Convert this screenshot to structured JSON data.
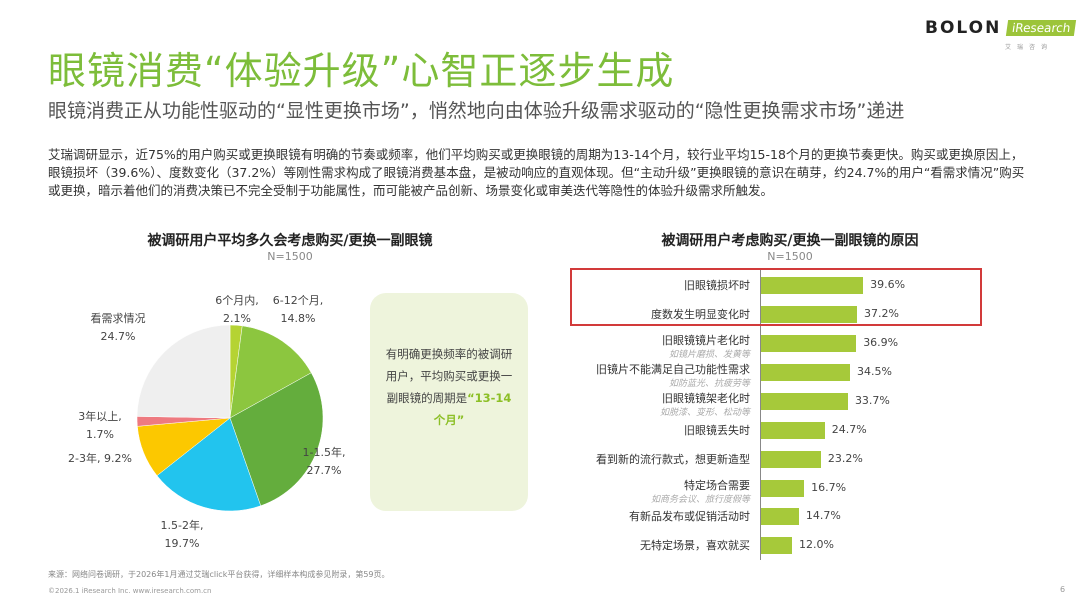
{
  "header": {
    "title": "眼镜消费“体验升级”心智正逐步生成",
    "subtitle": "眼镜消费正从功能性驱动的“显性更换市场”，悄然地向由体验升级需求驱动的“隐性更换需求市场”递进",
    "logo_brand": "BOLON",
    "logo_partner": "iResearch",
    "logo_partner_cn": "艾瑞咨询"
  },
  "body": "艾瑞调研显示，近75%的用户购买或更换眼镜有明确的节奏或频率，他们平均购买或更换眼镜的周期为13-14个月，较行业平均15-18个月的更换节奏更快。购买或更换原因上，眼镜损坏（39.6%）、度数变化（37.2%）等刚性需求构成了眼镜消费基本盘，是被动响应的直观体现。但“主动升级”更换眼镜的意识在萌芽，约24.7%的用户“看需求情况”购买或更换，暗示着他们的消费决策已不完全受制于功能属性，而可能被产品创新、场景变化或审美迭代等隐性的体验升级需求所触发。",
  "callout": {
    "text": "有明确更换频率的被调研用户，平均购买或更换一副眼镜的周期是",
    "highlight": "“13-14个月”"
  },
  "chart_data": [
    {
      "type": "pie",
      "title": "被调研用户平均多久会考虑购买/更换一副眼镜",
      "subtitle": "N=1500",
      "slices": [
        {
          "label": "6个月内,",
          "value": 2.1,
          "text": "2.1%",
          "color": "#b5d333"
        },
        {
          "label": "6-12个月,",
          "value": 14.8,
          "text": "14.8%",
          "color": "#8cc63f"
        },
        {
          "label": "1-1.5年,",
          "value": 27.7,
          "text": "27.7%",
          "color": "#64ad3d"
        },
        {
          "label": "1.5-2年,",
          "value": 19.7,
          "text": "19.7%",
          "color": "#22c4ee"
        },
        {
          "label": "2-3年,",
          "value": 9.2,
          "text": "9.2%",
          "color": "#fcc800"
        },
        {
          "label": "3年以上,",
          "value": 1.7,
          "text": "1.7%",
          "color": "#ee7a80"
        },
        {
          "label": "看需求情况",
          "value": 24.7,
          "text": "24.7%",
          "color": "#efefef"
        }
      ]
    },
    {
      "type": "bar",
      "orientation": "horizontal",
      "title": "被调研用户考虑购买/更换一副眼镜的原因",
      "subtitle": "N=1500",
      "color": "#a6c93a",
      "highlight_color": "#d23a3a",
      "categories": [
        "旧眼镜损坏时",
        "度数发生明显变化时",
        "旧眼镜镜片老化时",
        "旧镜片不能满足自己功能性需求",
        "旧眼镜镜架老化时",
        "旧眼镜丢失时",
        "看到新的流行款式，想更新造型",
        "特定场合需要",
        "有新品发布或促销活动时",
        "无特定场景，喜欢就买"
      ],
      "notes": [
        "",
        "",
        "如镜片磨损、发黄等",
        "如防蓝光、抗疲劳等",
        "如脱漆、变形、松动等",
        "",
        "",
        "如商务会议、旅行度假等",
        "",
        ""
      ],
      "values": [
        39.6,
        37.2,
        36.9,
        34.5,
        33.7,
        24.7,
        23.2,
        16.7,
        14.7,
        12.0
      ],
      "labels": [
        "39.6%",
        "37.2%",
        "36.9%",
        "34.5%",
        "33.7%",
        "24.7%",
        "23.2%",
        "16.7%",
        "14.7%",
        "12.0%"
      ],
      "highlighted": [
        "旧眼镜损坏时",
        "度数发生明显变化时"
      ]
    }
  ],
  "footer": {
    "source": "来源：网络问卷调研，于2026年1月通过艾瑞click平台获得，详细样本构成参见附录，第59页。",
    "copyright": "©2026.1 iResearch Inc.  www.iresearch.com.cn",
    "page": "6"
  }
}
